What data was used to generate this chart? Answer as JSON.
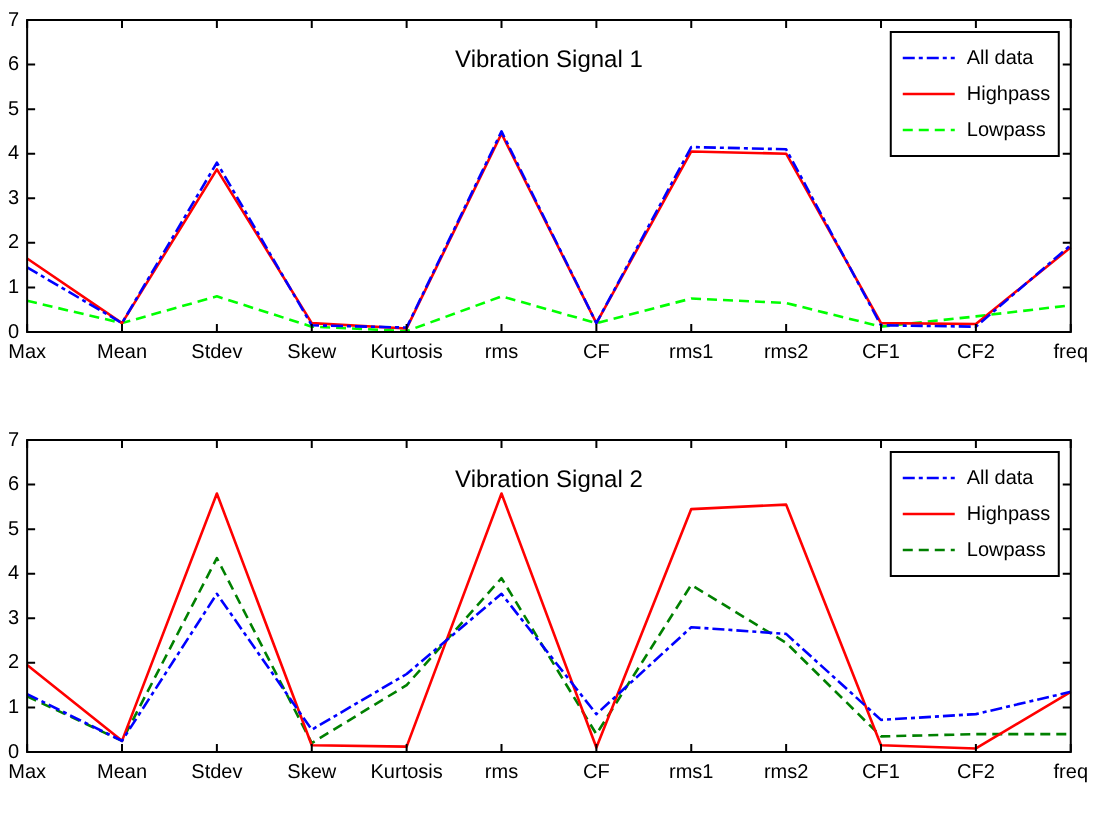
{
  "chart_data": [
    {
      "type": "line",
      "title": "Vibration Signal 1",
      "categories": [
        "Max",
        "Mean",
        "Stdev",
        "Skew",
        "Kurtosis",
        "rms",
        "CF",
        "rms1",
        "rms2",
        "CF1",
        "CF2",
        "freq"
      ],
      "ylim": [
        0,
        7
      ],
      "yticks": [
        0,
        1,
        2,
        3,
        4,
        5,
        6,
        7
      ],
      "legend": "top right",
      "series": [
        {
          "name": "All data",
          "color": "#0000ff",
          "line_style": "dashdot",
          "values": [
            1.45,
            0.2,
            3.8,
            0.15,
            0.1,
            4.5,
            0.2,
            4.15,
            4.1,
            0.15,
            0.12,
            1.95
          ]
        },
        {
          "name": "Highpass",
          "color": "#ff0000",
          "line_style": "solid",
          "values": [
            1.65,
            0.2,
            3.65,
            0.2,
            0.08,
            4.45,
            0.2,
            4.05,
            4.0,
            0.2,
            0.18,
            1.9
          ]
        },
        {
          "name": "Lowpass",
          "color": "#00ff00",
          "line_style": "dashed",
          "values": [
            0.7,
            0.2,
            0.8,
            0.12,
            0.02,
            0.8,
            0.2,
            0.75,
            0.65,
            0.12,
            0.35,
            0.6
          ]
        }
      ]
    },
    {
      "type": "line",
      "title": "Vibration Signal 2",
      "categories": [
        "Max",
        "Mean",
        "Stdev",
        "Skew",
        "Kurtosis",
        "rms",
        "CF",
        "rms1",
        "rms2",
        "CF1",
        "CF2",
        "freq"
      ],
      "ylim": [
        0,
        7
      ],
      "yticks": [
        0,
        1,
        2,
        3,
        4,
        5,
        6,
        7
      ],
      "legend": "top right",
      "series": [
        {
          "name": "All data",
          "color": "#0000ff",
          "line_style": "dashdot",
          "values": [
            1.3,
            0.25,
            3.55,
            0.5,
            1.75,
            3.55,
            0.85,
            2.8,
            2.65,
            0.72,
            0.85,
            1.35
          ]
        },
        {
          "name": "Highpass",
          "color": "#ff0000",
          "line_style": "solid",
          "values": [
            1.95,
            0.25,
            5.8,
            0.15,
            0.12,
            5.8,
            0.1,
            5.45,
            5.55,
            0.15,
            0.08,
            1.35
          ]
        },
        {
          "name": "Lowpass",
          "color": "#008000",
          "line_style": "dashed",
          "values": [
            1.25,
            0.25,
            4.35,
            0.2,
            1.5,
            3.9,
            0.4,
            3.75,
            2.45,
            0.35,
            0.4,
            0.4
          ]
        }
      ]
    }
  ]
}
